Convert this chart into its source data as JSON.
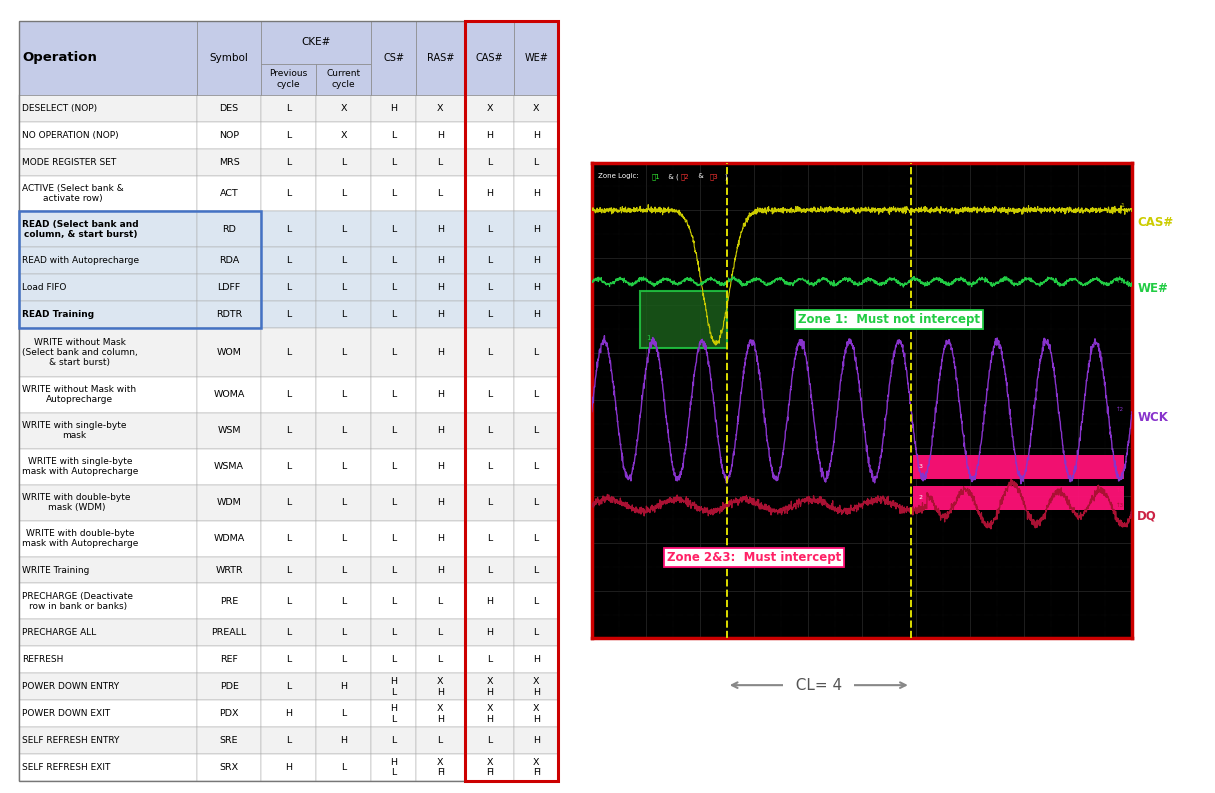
{
  "table_header_bg": "#c5cce8",
  "table_row_bg_even": "#f0f0f0",
  "table_row_bg_odd": "#ffffff",
  "table_highlight_read": "#dce6f1",
  "table_border_color": "#aaaaaa",
  "red_border_color": "#cc0000",
  "blue_border_color": "#4472c4",
  "osc_bg": "#000000",
  "osc_border": "#cc0000",
  "col_widths": [
    2.1,
    0.75,
    0.65,
    0.65,
    0.52,
    0.58,
    0.58,
    0.52
  ],
  "rows": [
    [
      "DESELECT (NOP)",
      "DES",
      "L",
      "X",
      "H",
      "X",
      "X",
      "X"
    ],
    [
      "NO OPERATION (NOP)",
      "NOP",
      "L",
      "X",
      "L",
      "H",
      "H",
      "H"
    ],
    [
      "MODE REGISTER SET",
      "MRS",
      "L",
      "L",
      "L",
      "L",
      "L",
      "L"
    ],
    [
      "ACTIVE (Select bank &\nactivate row)",
      "ACT",
      "L",
      "L",
      "L",
      "L",
      "H",
      "H"
    ],
    [
      "READ (Select bank and\ncolumn, & start burst)",
      "RD",
      "L",
      "L",
      "L",
      "H",
      "L",
      "H"
    ],
    [
      "READ with Autoprecharge",
      "RDA",
      "L",
      "L",
      "L",
      "H",
      "L",
      "H"
    ],
    [
      "Load FIFO",
      "LDFF",
      "L",
      "L",
      "L",
      "H",
      "L",
      "H"
    ],
    [
      "READ Training",
      "RDTR",
      "L",
      "L",
      "L",
      "H",
      "L",
      "H"
    ],
    [
      "WRITE without Mask\n(Select bank and column,\n& start burst)",
      "WOM",
      "L",
      "L",
      "L",
      "H",
      "L",
      "L"
    ],
    [
      "WRITE without Mask with\nAutoprecharge",
      "WOMA",
      "L",
      "L",
      "L",
      "H",
      "L",
      "L"
    ],
    [
      "WRITE with single-byte\nmask",
      "WSM",
      "L",
      "L",
      "L",
      "H",
      "L",
      "L"
    ],
    [
      "WRITE with single-byte\nmask with Autoprecharge",
      "WSMA",
      "L",
      "L",
      "L",
      "H",
      "L",
      "L"
    ],
    [
      "WRITE with double-byte\nmask (WDM)",
      "WDM",
      "L",
      "L",
      "L",
      "H",
      "L",
      "L"
    ],
    [
      "WRITE with double-byte\nmask with Autoprecharge",
      "WDMA",
      "L",
      "L",
      "L",
      "H",
      "L",
      "L"
    ],
    [
      "WRITE Training",
      "WRTR",
      "L",
      "L",
      "L",
      "H",
      "L",
      "L"
    ],
    [
      "PRECHARGE (Deactivate\nrow in bank or banks)",
      "PRE",
      "L",
      "L",
      "L",
      "L",
      "H",
      "L"
    ],
    [
      "PRECHARGE ALL",
      "PREALL",
      "L",
      "L",
      "L",
      "L",
      "H",
      "L"
    ],
    [
      "REFRESH",
      "REF",
      "L",
      "L",
      "L",
      "L",
      "L",
      "H"
    ],
    [
      "POWER DOWN ENTRY",
      "PDE",
      "L",
      "H",
      "H\nL",
      "X\nH",
      "X\nH",
      "X\nH"
    ],
    [
      "POWER DOWN EXIT",
      "PDX",
      "H",
      "L",
      "H\nL",
      "X\nH",
      "X\nH",
      "X\nH"
    ],
    [
      "SELF REFRESH ENTRY",
      "SRE",
      "L",
      "H",
      "L",
      "L",
      "L",
      "H"
    ],
    [
      "SELF REFRESH EXIT",
      "SRX",
      "H",
      "L",
      "H\nL",
      "X\nH̅",
      "X\nH̅",
      "X\nH̅"
    ]
  ],
  "read_rows": [
    4,
    5,
    6,
    7
  ],
  "bold_op_rows": [
    4,
    7
  ],
  "cas_color": "#cccc00",
  "we_color": "#22cc44",
  "wck_color": "#8844bb",
  "dq_color": "#cc2244",
  "zone1_fill": "#1a5c1a",
  "zone1_edge": "#22cc44",
  "zone23_fill": "#ff1177",
  "zone_logic_white": "#ffffff",
  "zone_logic_green": "#44ff44",
  "zone_logic_red": "#ff4444",
  "dashed_line_color": "#dddd00",
  "grid_color": "#303030"
}
